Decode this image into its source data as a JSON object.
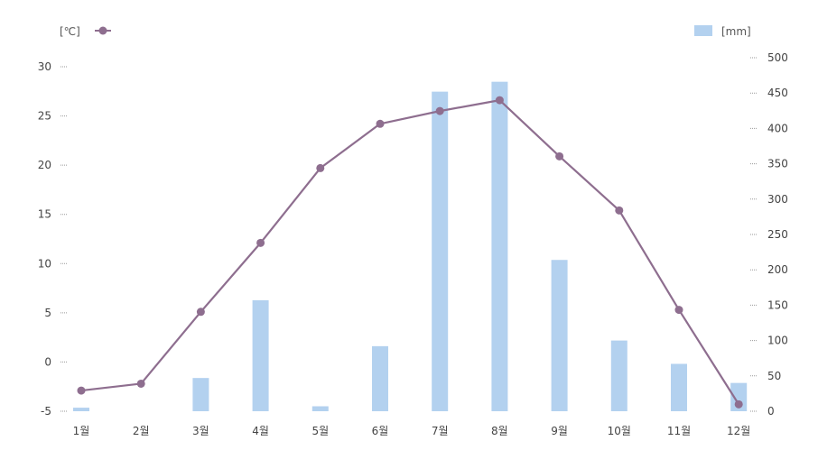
{
  "chart_data": {
    "type": "bar",
    "categories": [
      "1월",
      "2월",
      "3월",
      "4월",
      "5월",
      "6월",
      "7월",
      "8월",
      "9월",
      "10월",
      "11월",
      "12월"
    ],
    "left_axis": {
      "unit": "[℃]",
      "ylim": [
        -5,
        30
      ],
      "ticks": [
        -5,
        0,
        5,
        10,
        15,
        20,
        25,
        30
      ]
    },
    "right_axis": {
      "unit": "[mm]",
      "ylim": [
        0,
        500
      ],
      "ticks": [
        0,
        50,
        100,
        150,
        200,
        250,
        300,
        350,
        400,
        450,
        500
      ]
    },
    "series": [
      {
        "type": "bar",
        "axis": "right",
        "values": [
          5,
          0,
          47,
          157,
          7,
          92,
          452,
          466,
          214,
          100,
          67,
          40
        ]
      },
      {
        "type": "line",
        "axis": "left",
        "values": [
          -2.9,
          -2.2,
          5.1,
          12.1,
          19.7,
          24.2,
          25.5,
          26.6,
          20.9,
          15.4,
          5.3,
          -4.3
        ]
      }
    ],
    "legend": {
      "placement": "top"
    },
    "colors": {
      "bar": "#b3d1ef",
      "line": "#8e6e8f",
      "marker": "#8e6e8f"
    },
    "grid": false
  }
}
